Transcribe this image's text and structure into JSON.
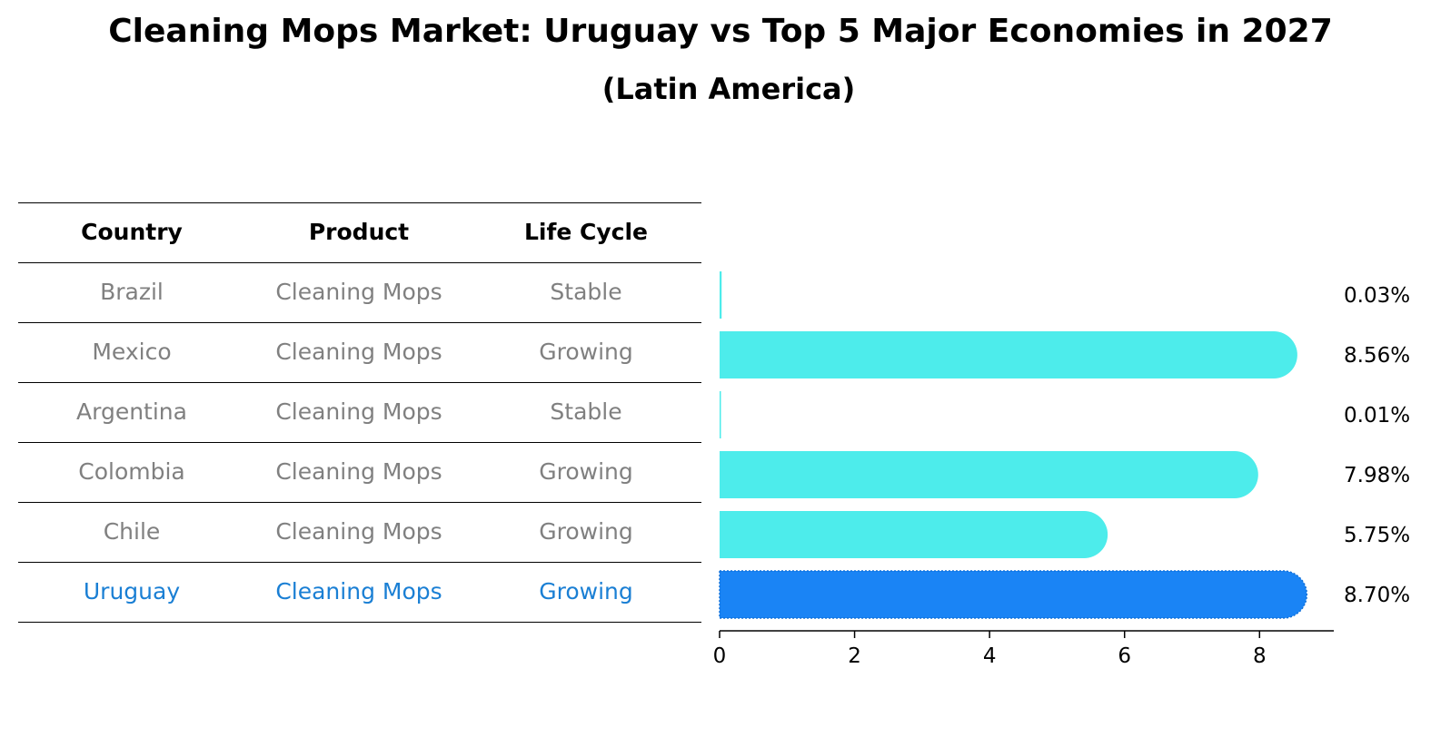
{
  "title": "Cleaning Mops Market: Uruguay vs Top 5 Major Economies in 2027",
  "subtitle": "(Latin America)",
  "table": {
    "headers": {
      "country": "Country",
      "product": "Product",
      "life_cycle": "Life Cycle"
    },
    "rows": [
      {
        "country": "Brazil",
        "product": "Cleaning Mops",
        "life_cycle": "Stable",
        "highlight": false
      },
      {
        "country": "Mexico",
        "product": "Cleaning Mops",
        "life_cycle": "Growing",
        "highlight": false
      },
      {
        "country": "Argentina",
        "product": "Cleaning Mops",
        "life_cycle": "Stable",
        "highlight": false
      },
      {
        "country": "Colombia",
        "product": "Cleaning Mops",
        "life_cycle": "Growing",
        "highlight": false
      },
      {
        "country": "Chile",
        "product": "Cleaning Mops",
        "life_cycle": "Growing",
        "highlight": false
      },
      {
        "country": "Uruguay",
        "product": "Cleaning Mops",
        "life_cycle": "Growing",
        "highlight": true
      }
    ]
  },
  "colors": {
    "bar": "#4deceb",
    "highlight_bar": "#1a84f5",
    "muted_text": "#808080",
    "highlight_text": "#1a7fd4"
  },
  "chart_data": {
    "type": "bar",
    "orientation": "horizontal",
    "categories": [
      "Brazil",
      "Mexico",
      "Argentina",
      "Colombia",
      "Chile",
      "Uruguay"
    ],
    "values": [
      0.03,
      8.56,
      0.01,
      7.98,
      5.75,
      8.7
    ],
    "value_labels": [
      "0.03%",
      "8.56%",
      "0.01%",
      "7.98%",
      "5.75%",
      "8.70%"
    ],
    "highlight_category": "Uruguay",
    "xlim": [
      0,
      9.1
    ],
    "xticks": [
      0,
      2,
      4,
      6,
      8
    ],
    "xtick_labels": [
      "0",
      "2",
      "4",
      "6",
      "8"
    ],
    "title": "Cleaning Mops Market: Uruguay vs Top 5 Major Economies in 2027",
    "subtitle": "(Latin America)",
    "xlabel": "",
    "ylabel": "",
    "grid": false,
    "legend": "none"
  }
}
